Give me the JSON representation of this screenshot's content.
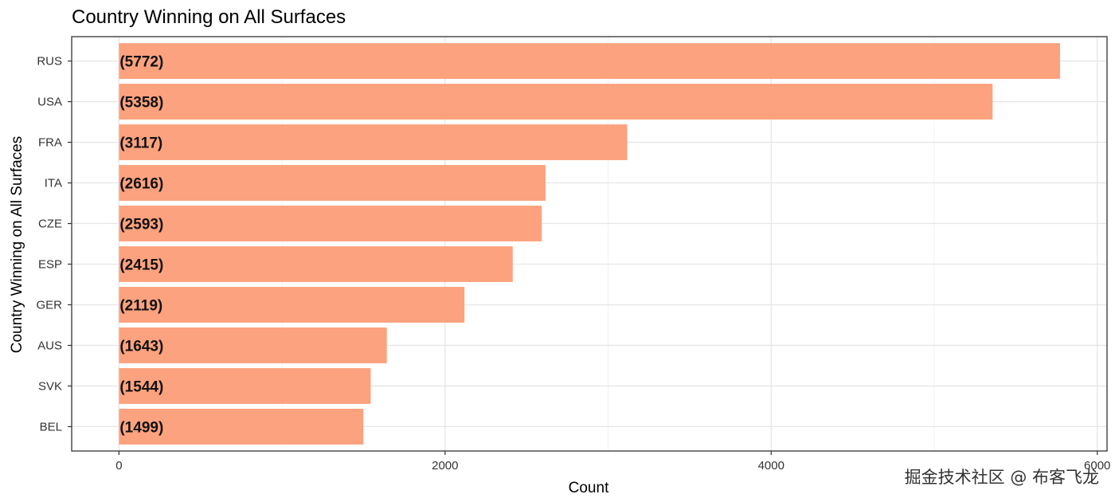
{
  "chart_data": {
    "type": "bar",
    "orientation": "horizontal",
    "title": "Country Winning on All Surfaces",
    "xlabel": "Count",
    "ylabel": "Country Winning on All Surfaces",
    "categories": [
      "RUS",
      "USA",
      "FRA",
      "ITA",
      "CZE",
      "ESP",
      "GER",
      "AUS",
      "SVK",
      "BEL"
    ],
    "values": [
      5772,
      5358,
      3117,
      2616,
      2593,
      2415,
      2119,
      1643,
      1544,
      1499
    ],
    "data_labels": [
      "(5772)",
      "(5358)",
      "(3117)",
      "(2616)",
      "(2593)",
      "(2415)",
      "(2119)",
      "(1643)",
      "(1544)",
      "(1499)"
    ],
    "x_ticks": [
      0,
      2000,
      4000,
      6000
    ],
    "x_tick_labels": [
      "0",
      "2000",
      "4000",
      "6000"
    ],
    "xlim": [
      -290,
      6060
    ],
    "grid": true,
    "legend": "none",
    "bar_color": "#FCA27E"
  },
  "watermark": "掘金技术社区 @ 布客飞龙"
}
